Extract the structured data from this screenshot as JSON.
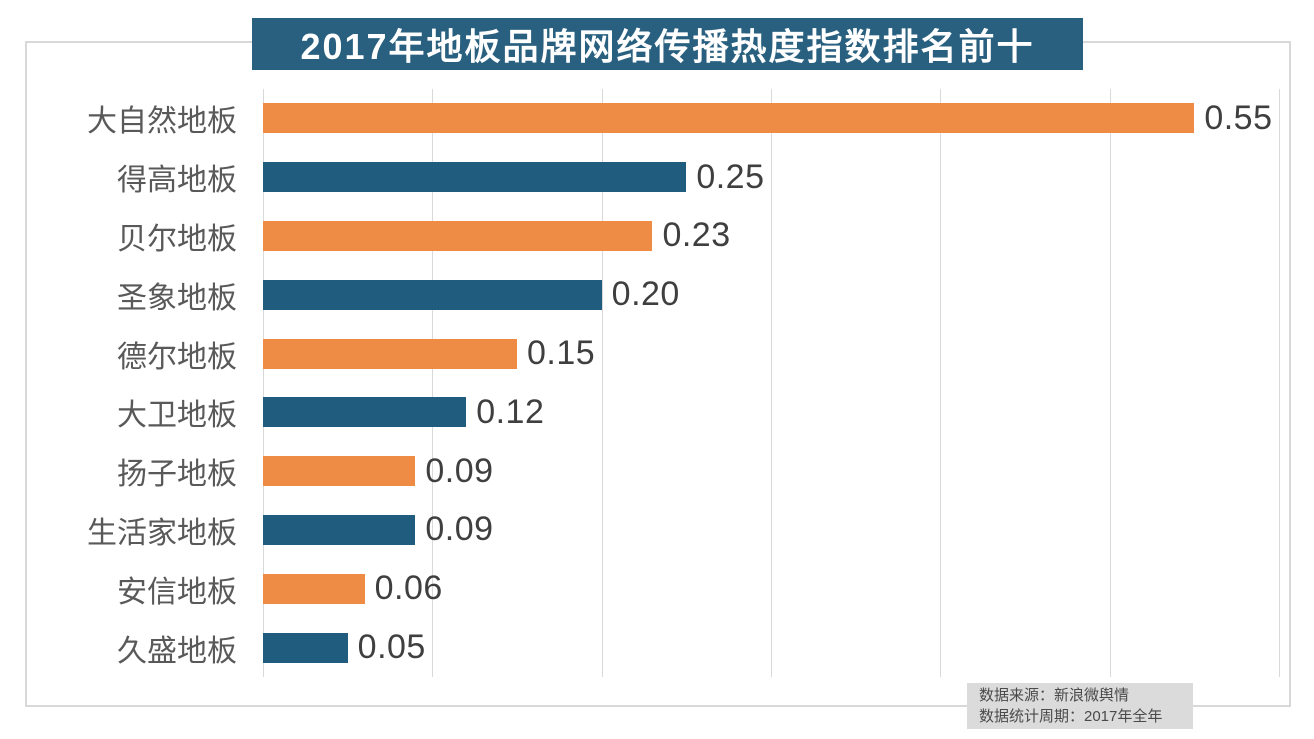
{
  "title": "2017年地板品牌网络传播热度指数排名前十",
  "source": {
    "line1": "数据来源：新浪微舆情",
    "line2": "数据统计周期：2017年全年"
  },
  "palette": {
    "orange": "#EE8C45",
    "blue": "#205C7E",
    "title_bg": "#29607F",
    "title_text": "#FFFFFF",
    "grid": "#D9D9D9",
    "frame_border": "#D8D8D8",
    "category_text": "#595959",
    "value_text": "#3F3F3F",
    "source_bg": "#DBDBDB",
    "source_text": "#4A4A4A"
  },
  "chart_data": {
    "type": "bar",
    "orientation": "horizontal",
    "title": "2017年地板品牌网络传播热度指数排名前十",
    "categories": [
      "大自然地板",
      "得高地板",
      "贝尔地板",
      "圣象地板",
      "德尔地板",
      "大卫地板",
      "扬子地板",
      "生活家地板",
      "安信地板",
      "久盛地板"
    ],
    "values": [
      0.55,
      0.25,
      0.23,
      0.2,
      0.15,
      0.12,
      0.09,
      0.09,
      0.06,
      0.05
    ],
    "value_labels": [
      "0.55",
      "0.25",
      "0.23",
      "0.20",
      "0.15",
      "0.12",
      "0.09",
      "0.09",
      "0.06",
      "0.05"
    ],
    "bar_colors": [
      "orange",
      "blue",
      "orange",
      "blue",
      "orange",
      "blue",
      "orange",
      "blue",
      "orange",
      "blue"
    ],
    "xlabel": "",
    "ylabel": "",
    "xlim": [
      0,
      0.6
    ],
    "gridline_interval": 0.1,
    "grid": true,
    "legend_position": "none",
    "source_note": [
      "数据来源：新浪微舆情",
      "数据统计周期：2017年全年"
    ]
  }
}
